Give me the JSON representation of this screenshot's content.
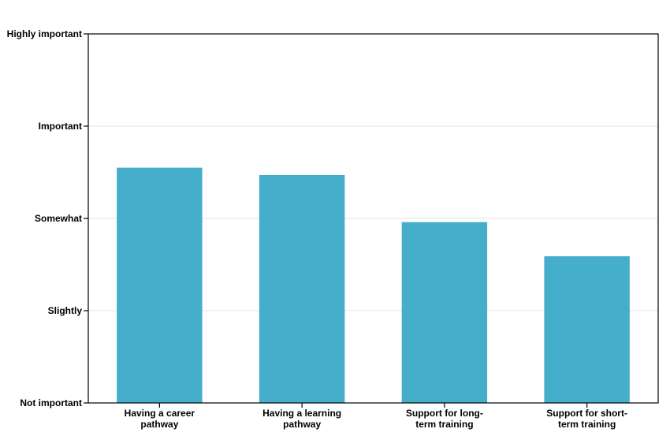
{
  "chart_data": {
    "type": "bar",
    "categories": [
      [
        "Having a career",
        "pathway"
      ],
      [
        "Having a learning",
        "pathway"
      ],
      [
        "Support for long-",
        "term training"
      ],
      [
        "Support for short-",
        "term training"
      ]
    ],
    "values": [
      3.55,
      3.47,
      2.96,
      2.59
    ],
    "ylim": [
      1,
      5
    ],
    "yticks": [
      {
        "value": 1,
        "label": "Not important"
      },
      {
        "value": 2,
        "label": "Slightly"
      },
      {
        "value": 3,
        "label": "Somewhat"
      },
      {
        "value": 4,
        "label": "Important"
      },
      {
        "value": 5,
        "label": "Highly important"
      }
    ],
    "grid": true,
    "colors": {
      "bar": "#45aecb",
      "grid": "#e3e3e3",
      "axis": "#000000"
    }
  }
}
